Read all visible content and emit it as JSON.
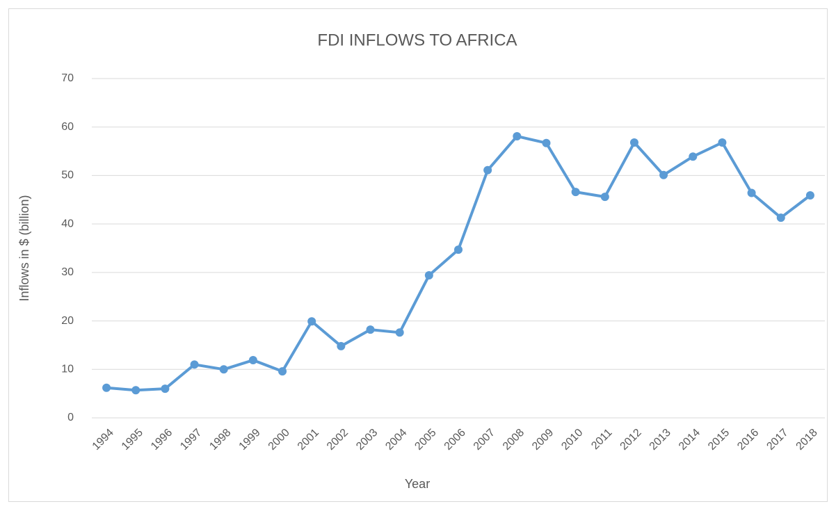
{
  "chart_data": {
    "type": "line",
    "title": "FDI INFLOWS TO AFRICA",
    "x_label": "Year",
    "y_label": "Inflows in $ (billion)",
    "categories": [
      "1994",
      "1995",
      "1996",
      "1997",
      "1998",
      "1999",
      "2000",
      "2001",
      "2002",
      "2003",
      "2004",
      "2005",
      "2006",
      "2007",
      "2008",
      "2009",
      "2010",
      "2011",
      "2012",
      "2013",
      "2014",
      "2015",
      "2016",
      "2017",
      "2018"
    ],
    "series": [
      {
        "name": "FDI inflows",
        "color": "#5b9bd5",
        "values": [
          6.2,
          5.7,
          6.0,
          11.0,
          10.0,
          11.9,
          9.6,
          19.9,
          14.8,
          18.2,
          17.6,
          29.4,
          34.7,
          51.1,
          58.1,
          56.7,
          46.6,
          45.6,
          56.8,
          50.1,
          53.9,
          56.8,
          46.4,
          41.3,
          45.9
        ]
      }
    ],
    "ylim": [
      0,
      70
    ],
    "yticks": [
      0,
      10,
      20,
      30,
      40,
      50,
      60,
      70
    ],
    "grid": true
  }
}
